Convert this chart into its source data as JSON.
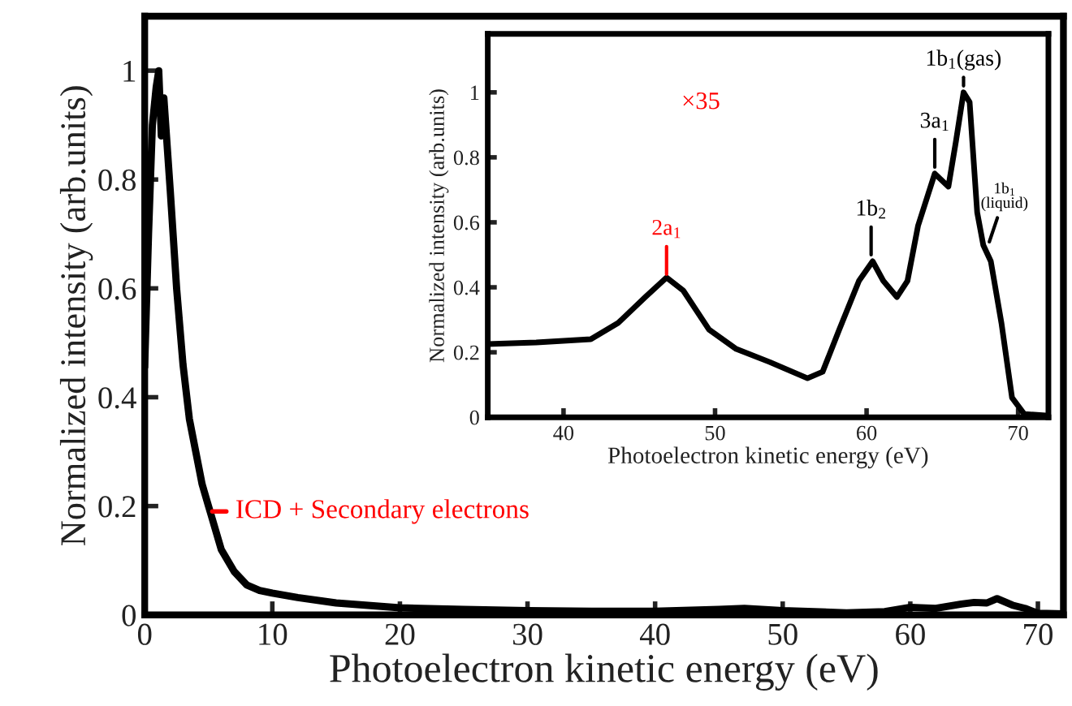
{
  "chart_data": [
    {
      "type": "line",
      "xlabel": "Photoelectron kinetic energy (eV)",
      "ylabel": "Normalized intensity (arb.units)",
      "xlim": [
        0,
        72
      ],
      "ylim": [
        0,
        1.1
      ],
      "xticks": [
        0,
        10,
        20,
        30,
        40,
        50,
        60,
        70
      ],
      "yticks": [
        0,
        0.2,
        0.4,
        0.6,
        0.8,
        1
      ],
      "grid": false,
      "legend": false,
      "marker": "none",
      "line_style": "solid",
      "series": [
        {
          "color": "#000000",
          "x": [
            0,
            0.3,
            0.6,
            0.9,
            1.1,
            1.3,
            1.5,
            2,
            2.5,
            3,
            3.5,
            4,
            4.5,
            5,
            6,
            7,
            8,
            9,
            10,
            12,
            15,
            20,
            25,
            30,
            35,
            40,
            45,
            47,
            50,
            55,
            58,
            60,
            62,
            64,
            65,
            66,
            66.8,
            68,
            69,
            70,
            72
          ],
          "values": [
            0.46,
            0.7,
            0.9,
            0.97,
            1.0,
            0.88,
            0.95,
            0.78,
            0.6,
            0.46,
            0.36,
            0.3,
            0.24,
            0.2,
            0.12,
            0.08,
            0.055,
            0.045,
            0.04,
            0.032,
            0.022,
            0.013,
            0.01,
            0.008,
            0.007,
            0.007,
            0.01,
            0.012,
            0.008,
            0.004,
            0.006,
            0.014,
            0.012,
            0.02,
            0.023,
            0.022,
            0.03,
            0.018,
            0.012,
            0.003,
            0.002
          ]
        }
      ],
      "annotations": [
        {
          "text": "ICD + Secondary electrons",
          "x": 5.3,
          "y": 0.19
        }
      ]
    },
    {
      "type": "line",
      "xlabel": "Photoelectron kinetic energy (eV)",
      "ylabel": "Normalized intensity (arb.units)",
      "xlim": [
        35,
        72
      ],
      "ylim": [
        0,
        1.18
      ],
      "xticks": [
        40,
        50,
        60,
        70
      ],
      "yticks": [
        0,
        0.2,
        0.4,
        0.6,
        0.8,
        1
      ],
      "grid": false,
      "legend": false,
      "marker": "none",
      "line_style": "solid",
      "series": [
        {
          "color": "#000000",
          "x": [
            35,
            38.2,
            41.8,
            43.6,
            45.4,
            46.8,
            47.9,
            49.6,
            51.4,
            53.6,
            56.1,
            57.1,
            58.2,
            59.5,
            60.4,
            61.1,
            62.0,
            62.7,
            63.4,
            64.5,
            65.4,
            65.9,
            66.4,
            66.8,
            67.3,
            67.7,
            68.2,
            68.9,
            69.6,
            70.4,
            72
          ],
          "values": [
            0.225,
            0.23,
            0.24,
            0.29,
            0.37,
            0.43,
            0.39,
            0.27,
            0.21,
            0.17,
            0.12,
            0.14,
            0.27,
            0.42,
            0.48,
            0.42,
            0.37,
            0.42,
            0.59,
            0.75,
            0.71,
            0.85,
            1.0,
            0.97,
            0.63,
            0.53,
            0.48,
            0.29,
            0.06,
            0.01,
            0.005
          ]
        }
      ],
      "annotations": [
        "×35",
        {
          "text": "2a$_{1}$",
          "x": 46.8,
          "y": 0.44
        },
        {
          "text": "1b$_{2}$",
          "x": 60.3,
          "y": 0.5
        },
        {
          "text": "3a$_{1}$",
          "x": 64.5,
          "y": 0.77
        },
        {
          "text": "1b$_{1}$(gas)",
          "x": 66.4,
          "y": 1.02
        },
        {
          "text": "1b$_{1}$\n(liquid)",
          "x": 68.1,
          "y": 0.54
        }
      ]
    }
  ]
}
